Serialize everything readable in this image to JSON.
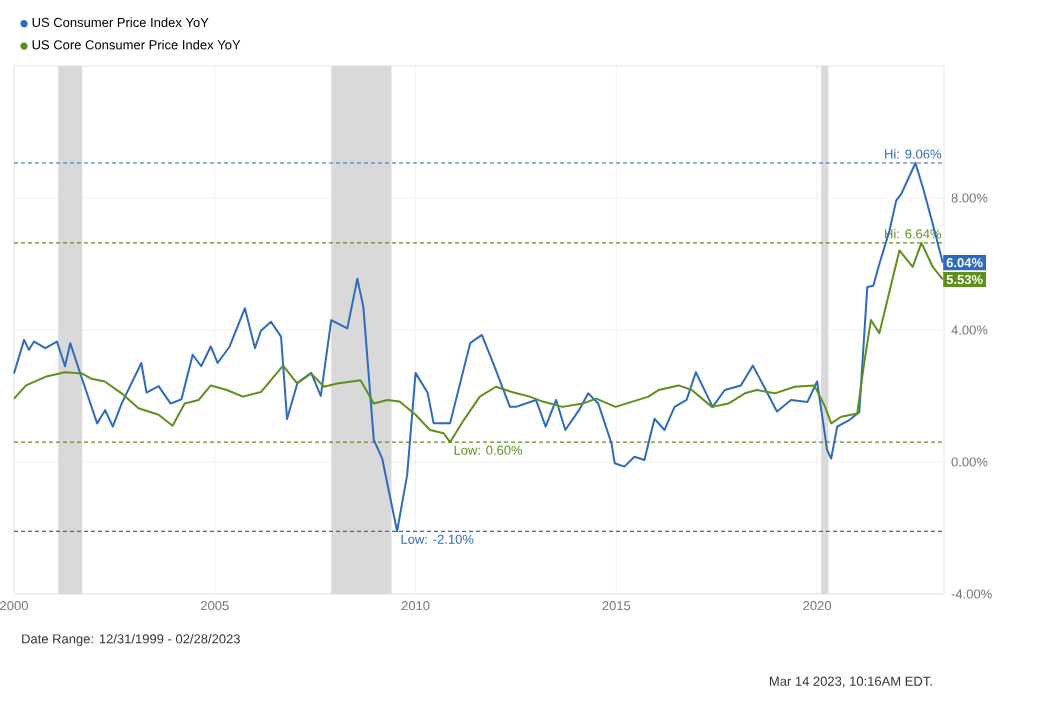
{
  "chart_data": {
    "type": "line",
    "xlim": [
      2000,
      2023.16
    ],
    "xticks": [
      2000,
      2005,
      2010,
      2015,
      2020
    ],
    "ylim": [
      -4,
      12
    ],
    "yticks": [
      {
        "value": -4,
        "label": "-4.00%"
      },
      {
        "value": 0,
        "label": "0.00%"
      },
      {
        "value": 4,
        "label": "4.00%"
      },
      {
        "value": 8,
        "label": "8.00%"
      }
    ],
    "grid": true,
    "legend": "top left",
    "series": [
      {
        "name": "US Consumer Price Index YoY",
        "color": "#2e6bbd",
        "x": [
          2000.0,
          2000.25,
          2000.37,
          2000.5,
          2000.78,
          2001.07,
          2001.27,
          2001.4,
          2001.7,
          2002.07,
          2002.27,
          2002.46,
          2002.68,
          2003.17,
          2003.3,
          2003.6,
          2003.9,
          2004.17,
          2004.45,
          2004.66,
          2004.9,
          2005.07,
          2005.37,
          2005.75,
          2006.0,
          2006.15,
          2006.4,
          2006.65,
          2006.8,
          2007.06,
          2007.4,
          2007.64,
          2007.9,
          2008.3,
          2008.55,
          2008.7,
          2008.96,
          2009.17,
          2009.54,
          2009.79,
          2010.0,
          2010.3,
          2010.45,
          2010.86,
          2011.36,
          2011.65,
          2011.93,
          2012.35,
          2012.5,
          2013.0,
          2013.24,
          2013.5,
          2013.73,
          2014.07,
          2014.3,
          2014.55,
          2014.88,
          2014.96,
          2015.2,
          2015.45,
          2015.7,
          2015.95,
          2016.2,
          2016.45,
          2016.75,
          2016.98,
          2017.4,
          2017.7,
          2018.1,
          2018.4,
          2018.68,
          2019.0,
          2019.35,
          2019.76,
          2020.0,
          2020.25,
          2020.35,
          2020.5,
          2020.8,
          2021.05,
          2021.25,
          2021.4,
          2021.55,
          2021.8,
          2021.97,
          2022.1,
          2022.45,
          2022.65,
          2022.9,
          2023.13
        ],
        "values": [
          2.68,
          3.7,
          3.4,
          3.65,
          3.45,
          3.65,
          2.9,
          3.6,
          2.5,
          1.17,
          1.57,
          1.07,
          1.77,
          3.0,
          2.1,
          2.3,
          1.77,
          1.9,
          3.25,
          2.9,
          3.5,
          3.0,
          3.5,
          4.66,
          3.45,
          3.98,
          4.25,
          3.8,
          1.3,
          2.4,
          2.7,
          2.0,
          4.3,
          4.05,
          5.55,
          4.7,
          0.67,
          0.1,
          -2.1,
          -0.4,
          2.7,
          2.1,
          1.17,
          1.17,
          3.6,
          3.85,
          3.0,
          1.67,
          1.67,
          1.88,
          1.07,
          1.88,
          0.97,
          1.57,
          2.08,
          1.77,
          0.56,
          -0.04,
          -0.14,
          0.16,
          0.06,
          1.31,
          0.97,
          1.67,
          1.88,
          2.72,
          1.67,
          2.18,
          2.32,
          2.92,
          2.28,
          1.53,
          1.88,
          1.82,
          2.44,
          0.36,
          0.1,
          1.07,
          1.27,
          1.51,
          5.3,
          5.34,
          6.0,
          7.0,
          7.92,
          8.13,
          9.06,
          8.25,
          7.12,
          6.04
        ]
      },
      {
        "name": "US Core Consumer Price Index YoY",
        "color": "#5f8f1c",
        "x": [
          2000.0,
          2000.3,
          2000.78,
          2001.27,
          2001.7,
          2001.93,
          2002.26,
          2002.68,
          2003.1,
          2003.6,
          2003.95,
          2004.25,
          2004.6,
          2004.9,
          2005.3,
          2005.7,
          2006.15,
          2006.7,
          2007.05,
          2007.4,
          2007.72,
          2008.05,
          2008.63,
          2008.96,
          2009.3,
          2009.6,
          2010.0,
          2010.36,
          2010.7,
          2010.86,
          2011.2,
          2011.6,
          2012.0,
          2012.4,
          2012.84,
          2013.17,
          2013.66,
          2014.16,
          2014.5,
          2014.98,
          2015.4,
          2015.8,
          2016.05,
          2016.55,
          2016.88,
          2017.38,
          2017.79,
          2018.2,
          2018.5,
          2018.95,
          2019.44,
          2019.93,
          2020.2,
          2020.35,
          2020.6,
          2021.0,
          2021.17,
          2021.34,
          2021.55,
          2021.75,
          2022.05,
          2022.38,
          2022.6,
          2022.88,
          2023.13
        ],
        "values": [
          1.92,
          2.32,
          2.58,
          2.72,
          2.68,
          2.52,
          2.44,
          2.08,
          1.63,
          1.43,
          1.1,
          1.77,
          1.88,
          2.32,
          2.18,
          1.98,
          2.12,
          2.92,
          2.38,
          2.68,
          2.28,
          2.38,
          2.48,
          1.77,
          1.88,
          1.83,
          1.43,
          0.97,
          0.87,
          0.6,
          1.27,
          1.98,
          2.28,
          2.12,
          1.98,
          1.83,
          1.67,
          1.77,
          1.92,
          1.67,
          1.83,
          1.98,
          2.18,
          2.32,
          2.18,
          1.67,
          1.77,
          2.08,
          2.18,
          2.08,
          2.28,
          2.32,
          1.67,
          1.17,
          1.37,
          1.47,
          2.98,
          4.3,
          3.9,
          4.9,
          6.41,
          5.91,
          6.64,
          5.91,
          5.53
        ]
      }
    ],
    "bands": [
      {
        "axis": "x",
        "from": 2001.1,
        "to": 2001.7,
        "color": "#d9d9d9"
      },
      {
        "axis": "x",
        "from": 2007.9,
        "to": 2009.4,
        "color": "#d9d9d9"
      },
      {
        "axis": "x",
        "from": 2020.1,
        "to": 2020.28,
        "color": "#d9d9d9"
      }
    ],
    "ref_lines": [
      {
        "axis": "y",
        "value": 9.06,
        "label": "Hi: 9.06%",
        "color": "#2e6bbd",
        "line_style": "dashed"
      },
      {
        "axis": "y",
        "value": 6.64,
        "label": "Hi: 6.64%",
        "color": "#5f8f1c",
        "line_style": "dashed"
      },
      {
        "axis": "y",
        "value": 0.6,
        "label": "Low: 0.60%",
        "color": "#5f8f1c",
        "line_style": "dashed"
      },
      {
        "axis": "y",
        "value": -2.1,
        "label": "Low: -2.10%",
        "color": "#2e6bbd",
        "line_style": "dashed"
      }
    ],
    "annotations": [
      {
        "text": "6.04%",
        "x": 2023.13,
        "y": 6.04
      },
      {
        "text": "5.53%",
        "x": 2023.13,
        "y": 5.53
      },
      "Date Range: 12/31/1999 - 02/28/2023",
      "Mar 14 2023, 10:16AM EDT."
    ]
  }
}
